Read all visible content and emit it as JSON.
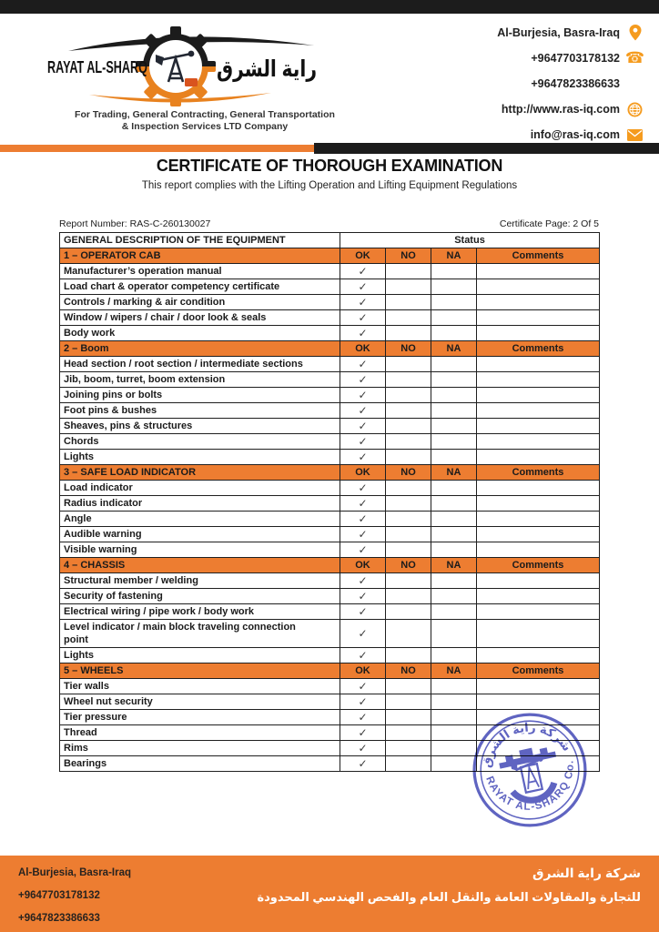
{
  "header": {
    "logo": {
      "name_en": "RAYAT AL-SHARQ",
      "name_ar": "راية الشرق",
      "tagline_line1": "For Trading, General Contracting, General Transportation",
      "tagline_line2": "& Inspection Services LTD Company"
    },
    "contacts": [
      {
        "text": "Al-Burjesia, Basra-Iraq",
        "icon": "location-pin-icon"
      },
      {
        "text": "+9647703178132",
        "icon": "phone-icon"
      },
      {
        "text": "+9647823386633",
        "icon": "none"
      },
      {
        "text": "http://www.ras-iq.com",
        "icon": "globe-icon"
      },
      {
        "text": "info@ras-iq.com",
        "icon": "email-icon"
      }
    ]
  },
  "title": "CERTIFICATE OF THOROUGH EXAMINATION",
  "subtitle": "This report complies with the Lifting Operation and Lifting Equipment Regulations",
  "report": {
    "number_label": "Report Number: RAS-C-260130027",
    "page_label": "Certificate Page: 2 Of 5"
  },
  "table": {
    "description_header": "GENERAL DESCRIPTION OF THE EQUIPMENT",
    "status_header": "Status",
    "columns": [
      "OK",
      "NO",
      "NA",
      "Comments"
    ],
    "check_mark": "✓",
    "sections": [
      {
        "title": "1 – OPERATOR CAB",
        "items": [
          {
            "label": "Manufacturer’s operation manual",
            "ok": true
          },
          {
            "label": "Load chart & operator competency certificate",
            "ok": true
          },
          {
            "label": "Controls / marking & air condition",
            "ok": true
          },
          {
            "label": "Window / wipers / chair / door look & seals",
            "ok": true
          },
          {
            "label": "Body work",
            "ok": true
          }
        ]
      },
      {
        "title": "2 – Boom",
        "items": [
          {
            "label": "Head section / root section / intermediate sections",
            "ok": true
          },
          {
            "label": "Jib, boom, turret, boom extension",
            "ok": true
          },
          {
            "label": "Joining pins or bolts",
            "ok": true
          },
          {
            "label": "Foot pins & bushes",
            "ok": true
          },
          {
            "label": "Sheaves, pins & structures",
            "ok": true
          },
          {
            "label": "Chords",
            "ok": true
          },
          {
            "label": "Lights",
            "ok": true
          }
        ]
      },
      {
        "title": "3 – SAFE LOAD INDICATOR",
        "items": [
          {
            "label": "Load indicator",
            "ok": true
          },
          {
            "label": "Radius indicator",
            "ok": true
          },
          {
            "label": "Angle",
            "ok": true
          },
          {
            "label": "Audible warning",
            "ok": true
          },
          {
            "label": "Visible warning",
            "ok": true
          }
        ]
      },
      {
        "title": "4 – CHASSIS",
        "items": [
          {
            "label": "Structural member / welding",
            "ok": true
          },
          {
            "label": "Security of fastening",
            "ok": true
          },
          {
            "label": "Electrical wiring / pipe work / body work",
            "ok": true
          },
          {
            "label": "Level indicator / main block traveling connection\npoint",
            "ok": true
          },
          {
            "label": "Lights",
            "ok": true
          }
        ]
      },
      {
        "title": "5 – WHEELS",
        "items": [
          {
            "label": "Tier walls",
            "ok": true
          },
          {
            "label": "Wheel nut security",
            "ok": true
          },
          {
            "label": "Tier pressure",
            "ok": true
          },
          {
            "label": "Thread",
            "ok": true
          },
          {
            "label": "Rims",
            "ok": true
          },
          {
            "label": "Bearings",
            "ok": true
          }
        ]
      }
    ]
  },
  "stamp": {
    "arc_top_ar": "شركة راية الشرق",
    "arc_bottom": "RAYAT AL-SHARQ Co.",
    "color": "#3C42B4"
  },
  "footer": {
    "address": "Al-Burjesia, Basra-Iraq",
    "phone1": "+9647703178132",
    "phone2": "+9647823386633",
    "company_ar_line1": "شركة راية الشرق",
    "company_ar_line2": "للتجارة والمقاولات العامة والنقل العام والفحص الهندسي المحدودة"
  },
  "colors": {
    "accent_orange": "#ED7D31",
    "icon_orange": "#F59B1E",
    "bar_black": "#1C1C1C",
    "stamp_blue": "#3C42B4"
  }
}
